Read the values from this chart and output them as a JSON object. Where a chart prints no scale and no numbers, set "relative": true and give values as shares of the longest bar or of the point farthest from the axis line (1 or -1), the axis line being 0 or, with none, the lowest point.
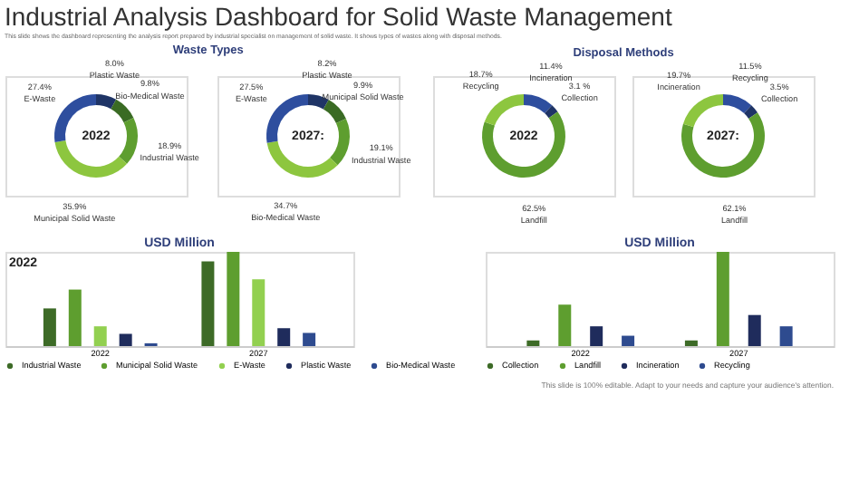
{
  "chart_data": [
    {
      "type": "donut",
      "title": "Industrial Analysis Dashboard for Solid Waste Management",
      "subtitle": "This slide shows the dashboard representing the analysis report prepared by industrial specialist on management of solid waste. It shows types of wastes along with disposal methods.",
      "annotations": [
        "Waste Types",
        "2022"
      ],
      "categories": [
        "Plastic Waste",
        "Bio-Medical Waste",
        "Industrial Waste",
        "Municipal  Solid Waste",
        "E-Waste"
      ],
      "values": [
        8.0,
        9.8,
        18.9,
        35.9,
        27.4
      ],
      "value_labels": [
        "8.0%",
        "9.8%",
        "18.9%",
        "35.9%",
        "27.4%"
      ],
      "colors": [
        "#1f3466",
        "#3a6b24",
        "#5e9e2f",
        "#8dc63f",
        "#2e4e9e"
      ]
    },
    {
      "type": "donut",
      "annotations": [
        "2027:"
      ],
      "categories": [
        "Plastic Waste",
        "Municipal Solid Waste",
        "Industrial Waste",
        "Bio-Medical Waste",
        "E-Waste"
      ],
      "values": [
        8.2,
        9.9,
        19.1,
        34.7,
        27.5
      ],
      "value_labels": [
        "8.2%",
        "9.9%",
        "19.1%",
        "34.7%",
        "27.5%"
      ],
      "colors": [
        "#1f3466",
        "#3a6b24",
        "#5e9e2f",
        "#8dc63f",
        "#2e4e9e"
      ]
    },
    {
      "type": "donut",
      "annotations": [
        "Disposal Methods",
        "2022"
      ],
      "categories": [
        "Incineration",
        "Collection",
        "Landfill",
        "Recycling"
      ],
      "values": [
        11.4,
        3.1,
        62.5,
        18.7
      ],
      "value_labels": [
        "11.4%",
        "3.1 %",
        "62.5%",
        "18.7%"
      ],
      "colors": [
        "#2e4e9e",
        "#1f3466",
        "#5e9e2f",
        "#8dc63f"
      ]
    },
    {
      "type": "donut",
      "annotations": [
        "2027:"
      ],
      "categories": [
        "Recycling",
        "Collection",
        "Landfill",
        "Incineration"
      ],
      "values": [
        11.5,
        3.5,
        62.1,
        19.7
      ],
      "value_labels": [
        "11.5%",
        "3.5%",
        "62.1%",
        "19.7%"
      ],
      "colors": [
        "#2e4e9e",
        "#1f3466",
        "#5e9e2f",
        "#8dc63f"
      ]
    },
    {
      "type": "bar",
      "title": "USD Million",
      "annotations": [
        "2022"
      ],
      "relative": true,
      "legend": "bottom",
      "categories": [
        "2022",
        "2027"
      ],
      "series": [
        {
          "name": "Industrial Waste",
          "color": "#3d6b27",
          "values": [
            0.4,
            0.9
          ]
        },
        {
          "name": "Municipal Solid Waste",
          "color": "#5e9e2f",
          "values": [
            0.6,
            1
          ]
        },
        {
          "name": "E-Waste",
          "color": "#92d050",
          "values": [
            0.21,
            0.71
          ]
        },
        {
          "name": "Plastic Waste",
          "color": "#1f2c5c",
          "values": [
            0.13,
            0.19
          ]
        },
        {
          "name": "Bio-Medical Waste",
          "color": "#2e4b8f",
          "values": [
            0.03,
            0.14
          ]
        }
      ]
    },
    {
      "type": "bar",
      "title": "USD Million",
      "annotations": [
        "This slide is 100% editable. Adapt to your needs and capture your audience's attention."
      ],
      "relative": true,
      "legend": "bottom",
      "categories": [
        "2022",
        "2027"
      ],
      "series": [
        {
          "name": "Collection",
          "color": "#3d6b27",
          "values": [
            0.06,
            0.06
          ]
        },
        {
          "name": "Landfill",
          "color": "#5e9e2f",
          "values": [
            0.44,
            1
          ]
        },
        {
          "name": "Incineration",
          "color": "#1f2c5c",
          "values": [
            0.21,
            0.33
          ]
        },
        {
          "name": "Recycling",
          "color": "#2e4b8f",
          "values": [
            0.11,
            0.21
          ]
        }
      ]
    }
  ]
}
